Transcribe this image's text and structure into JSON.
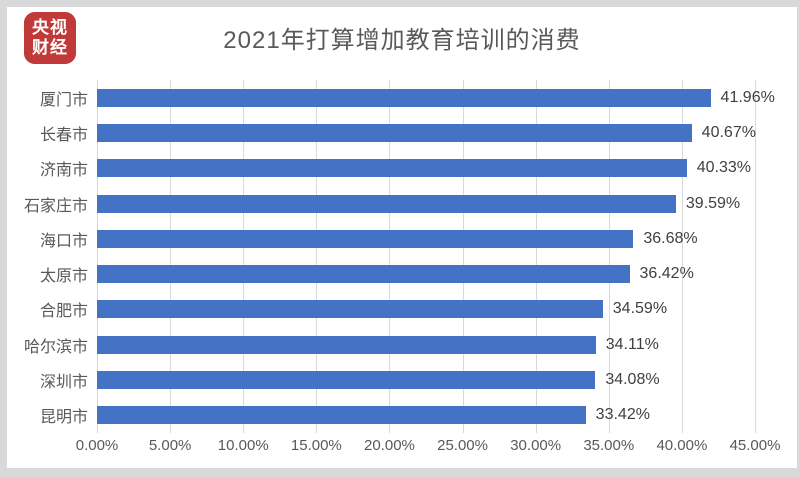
{
  "page": {
    "frame_color": "#d9d9d9",
    "card_color": "#ffffff"
  },
  "header": {
    "logo": {
      "line1": "央视",
      "line2": "财经",
      "background": "#bf3a38",
      "text_color": "#ffffff"
    },
    "title": "2021年打算增加教育培训的消费"
  },
  "chart_data": {
    "type": "bar",
    "orientation": "horizontal",
    "title": "2021年打算增加教育培训的消费",
    "categories": [
      "厦门市",
      "长春市",
      "济南市",
      "石家庄市",
      "海口市",
      "太原市",
      "合肥市",
      "哈尔滨市",
      "深圳市",
      "昆明市"
    ],
    "values": [
      41.96,
      40.67,
      40.33,
      39.59,
      36.68,
      36.42,
      34.59,
      34.11,
      34.08,
      33.42
    ],
    "value_labels": [
      "41.96%",
      "40.67%",
      "40.33%",
      "39.59%",
      "36.68%",
      "36.42%",
      "34.59%",
      "34.11%",
      "34.08%",
      "33.42%"
    ],
    "xlabel": "",
    "ylabel": "",
    "xlim": [
      0,
      45
    ],
    "x_ticks": [
      {
        "value": 0,
        "label": "0.00%"
      },
      {
        "value": 5,
        "label": "5.00%"
      },
      {
        "value": 10,
        "label": "10.00%"
      },
      {
        "value": 15,
        "label": "15.00%"
      },
      {
        "value": 20,
        "label": "20.00%"
      },
      {
        "value": 25,
        "label": "25.00%"
      },
      {
        "value": 30,
        "label": "30.00%"
      },
      {
        "value": 35,
        "label": "35.00%"
      },
      {
        "value": 40,
        "label": "40.00%"
      },
      {
        "value": 45,
        "label": "45.00%"
      }
    ],
    "grid": true,
    "legend": false,
    "bar_color": "#4472c4",
    "gridline_color": "#d9d9d9",
    "label_color": "#595959",
    "value_label_color": "#404040"
  }
}
